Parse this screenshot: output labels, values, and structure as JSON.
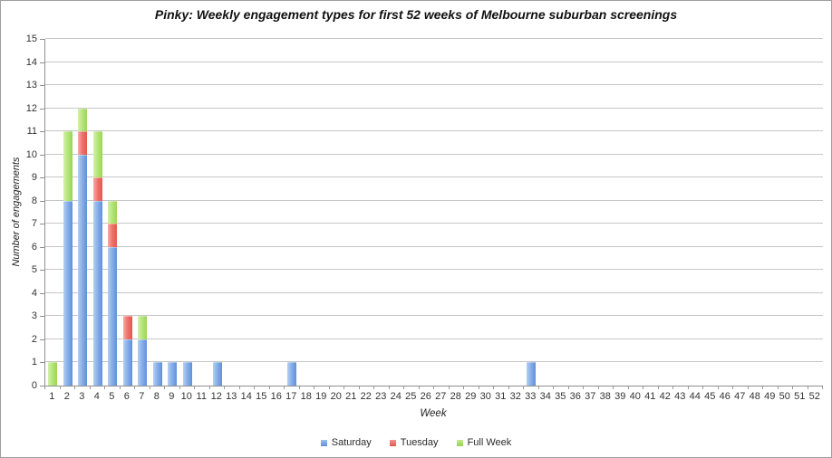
{
  "chart_data": {
    "type": "bar",
    "stacked": true,
    "title": "Pinky: Weekly engagement types for first 52 weeks of Melbourne suburban screenings",
    "xlabel": "Week",
    "ylabel": "Number of engagements",
    "categories": [
      "1",
      "2",
      "3",
      "4",
      "5",
      "6",
      "7",
      "8",
      "9",
      "10",
      "11",
      "12",
      "13",
      "14",
      "15",
      "16",
      "17",
      "18",
      "19",
      "20",
      "21",
      "22",
      "23",
      "24",
      "25",
      "26",
      "27",
      "28",
      "29",
      "30",
      "31",
      "32",
      "33",
      "34",
      "35",
      "36",
      "37",
      "38",
      "39",
      "40",
      "41",
      "42",
      "43",
      "44",
      "45",
      "46",
      "47",
      "48",
      "49",
      "50",
      "51",
      "52"
    ],
    "series": [
      {
        "name": "Saturday",
        "color": "#6e9ddf",
        "values": [
          0,
          8,
          10,
          8,
          6,
          2,
          2,
          1,
          1,
          1,
          0,
          1,
          0,
          0,
          0,
          0,
          1,
          0,
          0,
          0,
          0,
          0,
          0,
          0,
          0,
          0,
          0,
          0,
          0,
          0,
          0,
          0,
          1,
          0,
          0,
          0,
          0,
          0,
          0,
          0,
          0,
          0,
          0,
          0,
          0,
          0,
          0,
          0,
          0,
          0,
          0,
          0
        ]
      },
      {
        "name": "Tuesday",
        "color": "#e66059",
        "values": [
          0,
          0,
          1,
          1,
          1,
          1,
          0,
          0,
          0,
          0,
          0,
          0,
          0,
          0,
          0,
          0,
          0,
          0,
          0,
          0,
          0,
          0,
          0,
          0,
          0,
          0,
          0,
          0,
          0,
          0,
          0,
          0,
          0,
          0,
          0,
          0,
          0,
          0,
          0,
          0,
          0,
          0,
          0,
          0,
          0,
          0,
          0,
          0,
          0,
          0,
          0,
          0
        ]
      },
      {
        "name": "Full Week",
        "color": "#a8dc64",
        "values": [
          1,
          3,
          1,
          2,
          1,
          0,
          1,
          0,
          0,
          0,
          0,
          0,
          0,
          0,
          0,
          0,
          0,
          0,
          0,
          0,
          0,
          0,
          0,
          0,
          0,
          0,
          0,
          0,
          0,
          0,
          0,
          0,
          0,
          0,
          0,
          0,
          0,
          0,
          0,
          0,
          0,
          0,
          0,
          0,
          0,
          0,
          0,
          0,
          0,
          0,
          0,
          0
        ]
      }
    ],
    "ylim": [
      0,
      15
    ],
    "ytick_step": 1,
    "grid": true,
    "legend_position": "bottom"
  }
}
